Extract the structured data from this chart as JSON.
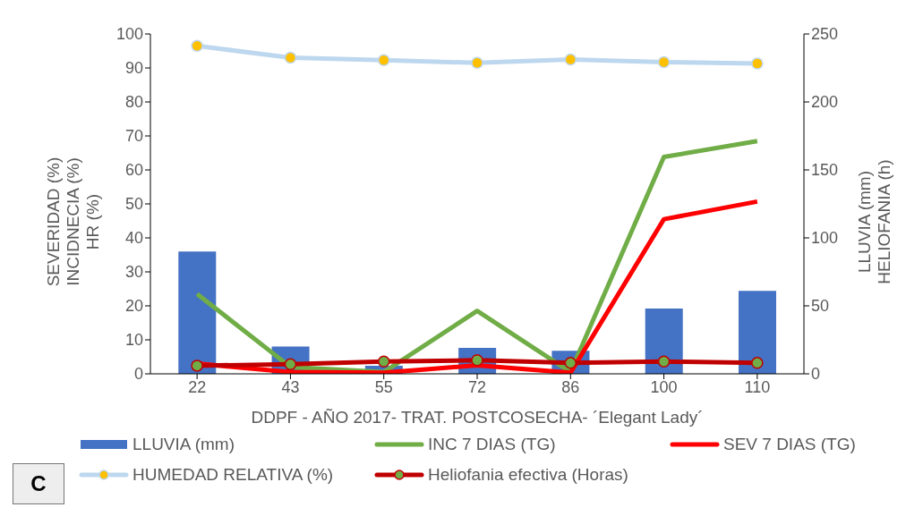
{
  "chart_data": {
    "type": "line",
    "xlabel": "DDPF - AÑO 2017- TRAT. POSTCOSECHA- ´Elegant Lady´",
    "ylabel": "SEVERIDAD (%)\nINCIDNECIA (%)\nHR (%)",
    "y2label": "LLUVIA (mm)\nHELIOFANIA (h)",
    "categories": [
      "22",
      "43",
      "55",
      "72",
      "86",
      "100",
      "110"
    ],
    "ylim": [
      0,
      100
    ],
    "yticks": [
      0,
      10,
      20,
      30,
      40,
      50,
      60,
      70,
      80,
      90,
      100
    ],
    "y2lim": [
      0,
      250
    ],
    "y2ticks": [
      0,
      50,
      100,
      150,
      200,
      250
    ],
    "legend": "bottom",
    "annotations": [
      "C"
    ],
    "series": [
      {
        "name": "LLUVIA (mm)",
        "type": "bar",
        "axis": "y2",
        "color": "#4472c4",
        "values": [
          90,
          20,
          6,
          19,
          17,
          48,
          61
        ]
      },
      {
        "name": "INC 7 DIAS (TG)",
        "axis": "y",
        "color": "#70ad47",
        "marker": "none",
        "values": [
          23.5,
          2,
          0.5,
          18.5,
          0.5,
          63.8,
          68.5
        ]
      },
      {
        "name": "SEV 7 DIAS (TG)",
        "axis": "y",
        "color": "#ff0000",
        "marker": "none",
        "values": [
          3,
          0.5,
          0.3,
          2.5,
          0.3,
          45.5,
          50.7
        ]
      },
      {
        "name": "HUMEDAD RELATIVA (%)",
        "axis": "y",
        "color": "#bdd7ee",
        "marker": "circle",
        "colors": [
          "#ffc000",
          "#ffc000",
          "#ffc000",
          "#ffc000",
          "#ffc000",
          "#ffc000",
          "#ffc000"
        ],
        "values": [
          96.5,
          93,
          92.3,
          91.5,
          92.5,
          91.7,
          91.3
        ]
      },
      {
        "name": "Heliofania efectiva (Horas)",
        "axis": "y2",
        "color": "#c00000",
        "marker": "circle",
        "colors": [
          "#70ad47",
          "#70ad47",
          "#70ad47",
          "#70ad47",
          "#70ad47",
          "#70ad47",
          "#70ad47"
        ],
        "values": [
          6,
          7,
          9,
          10,
          8,
          9,
          8
        ]
      }
    ]
  }
}
